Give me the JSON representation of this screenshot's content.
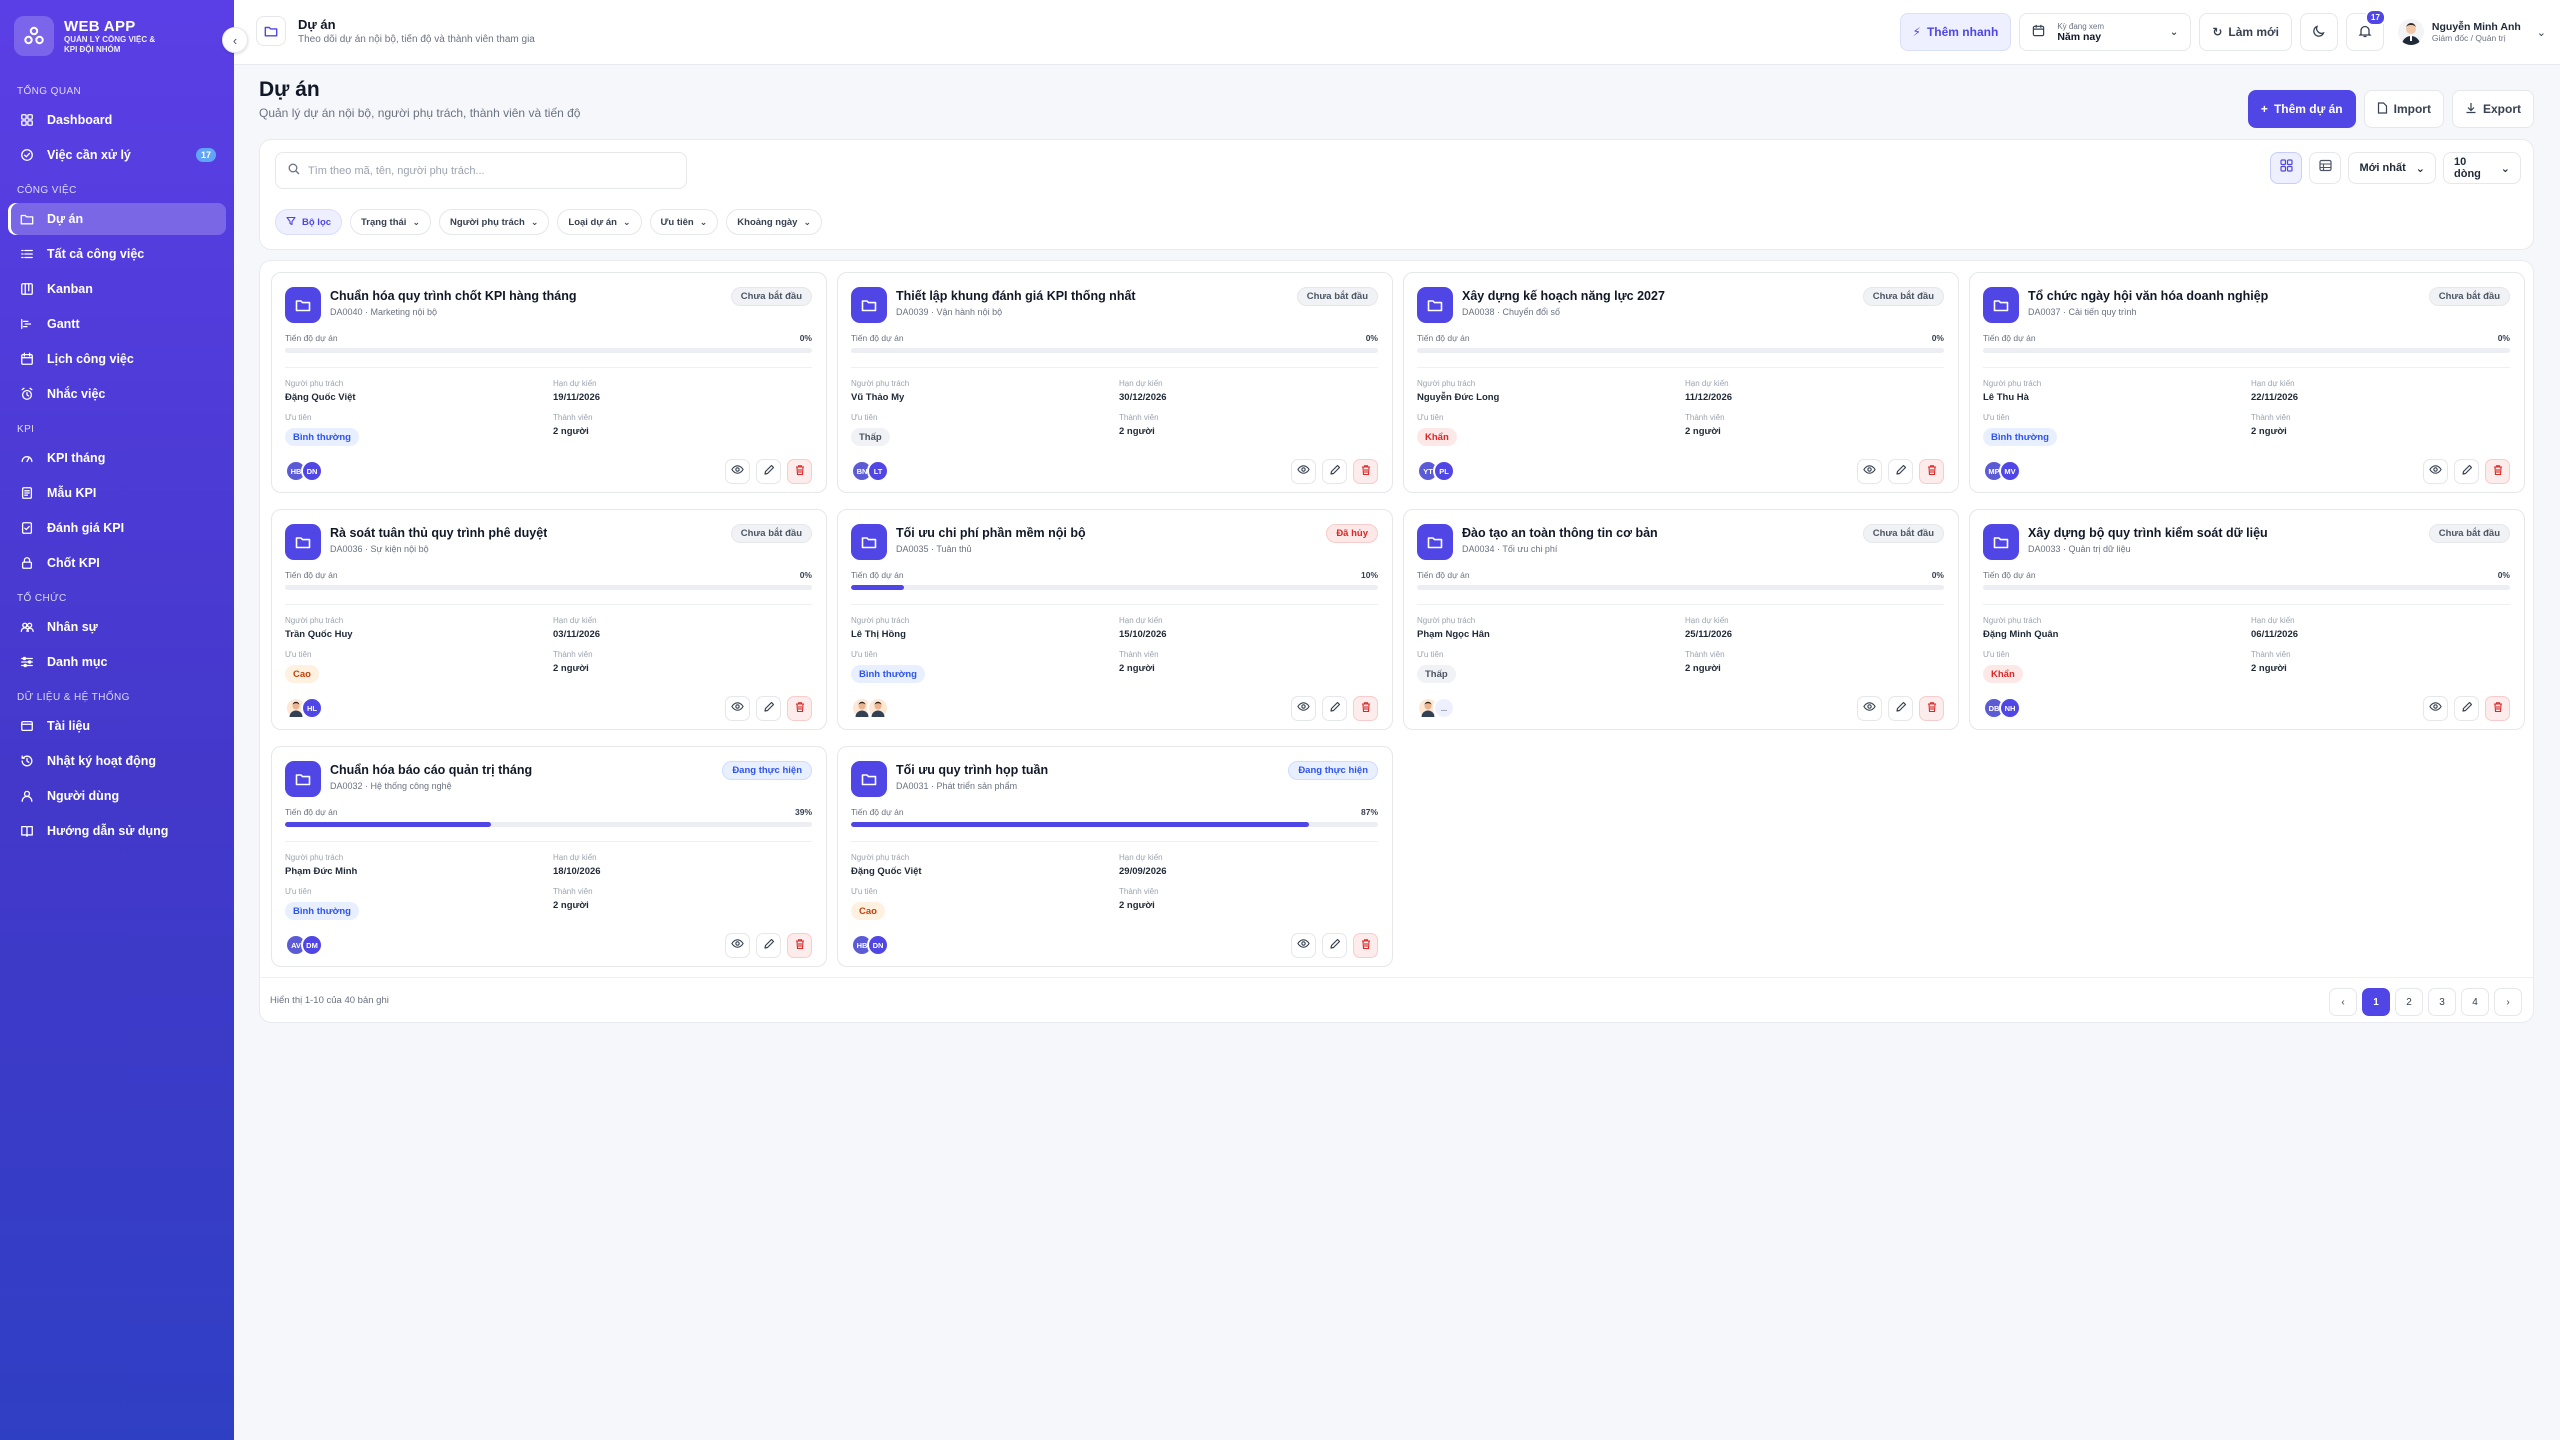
{
  "brand": {
    "title": "WEB APP",
    "subtitle": "QUẢN LÝ CÔNG VIỆC & KPI ĐỘI NHÓM"
  },
  "sidebar": {
    "sections": [
      {
        "title": "TỔNG QUAN",
        "items": [
          {
            "label": "Dashboard",
            "icon": "dashboard-icon"
          },
          {
            "label": "Việc cần xử lý",
            "icon": "check-circle-icon",
            "badge": "17"
          }
        ]
      },
      {
        "title": "CÔNG VIỆC",
        "items": [
          {
            "label": "Dự án",
            "icon": "folder-icon",
            "active": true
          },
          {
            "label": "Tất cả công việc",
            "icon": "list-icon"
          },
          {
            "label": "Kanban",
            "icon": "kanban-icon"
          },
          {
            "label": "Gantt",
            "icon": "gantt-icon"
          },
          {
            "label": "Lịch công việc",
            "icon": "calendar-icon"
          },
          {
            "label": "Nhắc việc",
            "icon": "alarm-icon"
          }
        ]
      },
      {
        "title": "KPI",
        "items": [
          {
            "label": "KPI tháng",
            "icon": "gauge-icon"
          },
          {
            "label": "Mẫu KPI",
            "icon": "template-icon"
          },
          {
            "label": "Đánh giá KPI",
            "icon": "review-icon"
          },
          {
            "label": "Chốt KPI",
            "icon": "lock-icon"
          }
        ]
      },
      {
        "title": "TỔ CHỨC",
        "items": [
          {
            "label": "Nhân sự",
            "icon": "users-icon"
          },
          {
            "label": "Danh mục",
            "icon": "category-icon"
          }
        ]
      },
      {
        "title": "DỮ LIỆU & HỆ THỐNG",
        "items": [
          {
            "label": "Tài liệu",
            "icon": "document-icon"
          },
          {
            "label": "Nhật ký hoạt động",
            "icon": "history-icon"
          },
          {
            "label": "Người dùng",
            "icon": "user-icon"
          },
          {
            "label": "Hướng dẫn sử dụng",
            "icon": "book-icon"
          }
        ]
      }
    ]
  },
  "topbar": {
    "title": "Dự án",
    "subtitle": "Theo dõi dự án nội bộ, tiến độ và thành viên tham gia",
    "quick_add": "Thêm nhanh",
    "period_label": "Kỳ đang xem",
    "period_value": "Năm nay",
    "refresh": "Làm mới",
    "notif_count": "17",
    "user_name": "Nguyễn Minh Anh",
    "user_role": "Giám đốc / Quản trị"
  },
  "page": {
    "title": "Dự án",
    "subtitle": "Quản lý dự án nội bộ, người phụ trách, thành viên và tiến độ",
    "add_button": "Thêm dự án",
    "import_button": "Import",
    "export_button": "Export"
  },
  "filters": {
    "search_placeholder": "Tìm theo mã, tên, người phụ trách...",
    "sort": "Mới nhất",
    "page_size": "10 dòng",
    "chips": [
      "Bộ lọc",
      "Trạng thái",
      "Người phụ trách",
      "Loại dự án",
      "Ưu tiên",
      "Khoảng ngày"
    ]
  },
  "labels": {
    "progress": "Tiến độ dự án",
    "owner": "Người phụ trách",
    "deadline": "Hạn dự kiến",
    "priority": "Ưu tiên",
    "members": "Thành viên"
  },
  "projects": [
    {
      "title": "Chuẩn hóa quy trình chốt KPI hàng tháng",
      "code": "DA0040 · Marketing nội bộ",
      "status": "Chưa bắt đầu",
      "status_type": "gray",
      "progress": 0,
      "progress_text": "0%",
      "owner": "Đặng Quốc Việt",
      "deadline": "19/11/2026",
      "priority": "Bình thường",
      "priority_type": "blue",
      "members": "2 người",
      "avatars": [
        {
          "text": "HB",
          "color": "#5b5bd6"
        },
        {
          "text": "DN",
          "color": "#4f46e5"
        }
      ]
    },
    {
      "title": "Thiết lập khung đánh giá KPI thống nhất",
      "code": "DA0039 · Vận hành nội bộ",
      "status": "Chưa bắt đầu",
      "status_type": "gray",
      "progress": 0,
      "progress_text": "0%",
      "owner": "Vũ Thảo My",
      "deadline": "30/12/2026",
      "priority": "Thấp",
      "priority_type": "gray",
      "members": "2 người",
      "avatars": [
        {
          "text": "BN",
          "color": "#5b5bd6"
        },
        {
          "text": "LT",
          "color": "#4f46e5"
        }
      ]
    },
    {
      "title": "Xây dựng kế hoạch năng lực 2027",
      "code": "DA0038 · Chuyển đổi số",
      "status": "Chưa bắt đầu",
      "status_type": "gray",
      "progress": 0,
      "progress_text": "0%",
      "owner": "Nguyễn Đức Long",
      "deadline": "11/12/2026",
      "priority": "Khẩn",
      "priority_type": "red",
      "members": "2 người",
      "avatars": [
        {
          "text": "YT",
          "color": "#5b5bd6"
        },
        {
          "text": "PL",
          "color": "#4f46e5"
        }
      ]
    },
    {
      "title": "Tổ chức ngày hội văn hóa doanh nghiệp",
      "code": "DA0037 · Cải tiến quy trình",
      "status": "Chưa bắt đầu",
      "status_type": "gray",
      "progress": 0,
      "progress_text": "0%",
      "owner": "Lê Thu Hà",
      "deadline": "22/11/2026",
      "priority": "Bình thường",
      "priority_type": "blue",
      "members": "2 người",
      "avatars": [
        {
          "text": "MP",
          "color": "#5b5bd6"
        },
        {
          "text": "MV",
          "color": "#4f46e5"
        }
      ]
    },
    {
      "title": "Rà soát tuân thủ quy trình phê duyệt",
      "code": "DA0036 · Sự kiện nội bộ",
      "status": "Chưa bắt đầu",
      "status_type": "gray",
      "progress": 0,
      "progress_text": "0%",
      "owner": "Trần Quốc Huy",
      "deadline": "03/11/2026",
      "priority": "Cao",
      "priority_type": "orange",
      "members": "2 người",
      "avatars": [
        {
          "text": "",
          "photo": true
        },
        {
          "text": "HL",
          "color": "#4f46e5"
        }
      ]
    },
    {
      "title": "Tối ưu chi phí phần mềm nội bộ",
      "code": "DA0035 · Tuân thủ",
      "status": "Đã hủy",
      "status_type": "red",
      "progress": 10,
      "progress_text": "10%",
      "owner": "Lê Thị Hồng",
      "deadline": "15/10/2026",
      "priority": "Bình thường",
      "priority_type": "blue",
      "members": "2 người",
      "avatars": [
        {
          "text": "",
          "photo": true
        },
        {
          "text": "",
          "photo": true
        }
      ]
    },
    {
      "title": "Đào tạo an toàn thông tin cơ bản",
      "code": "DA0034 · Tối ưu chi phí",
      "status": "Chưa bắt đầu",
      "status_type": "gray",
      "progress": 0,
      "progress_text": "0%",
      "owner": "Phạm Ngọc Hân",
      "deadline": "25/11/2026",
      "priority": "Thấp",
      "priority_type": "gray",
      "members": "2 người",
      "avatars": [
        {
          "text": "",
          "photo": true
        },
        {
          "text": "...",
          "more": true
        }
      ]
    },
    {
      "title": "Xây dựng bộ quy trình kiểm soát dữ liệu",
      "code": "DA0033 · Quản trị dữ liệu",
      "status": "Chưa bắt đầu",
      "status_type": "gray",
      "progress": 0,
      "progress_text": "0%",
      "owner": "Đặng Minh Quân",
      "deadline": "06/11/2026",
      "priority": "Khẩn",
      "priority_type": "red",
      "members": "2 người",
      "avatars": [
        {
          "text": "DB",
          "color": "#5b5bd6"
        },
        {
          "text": "NH",
          "color": "#4f46e5"
        }
      ]
    },
    {
      "title": "Chuẩn hóa báo cáo quản trị tháng",
      "code": "DA0032 · Hệ thống công nghệ",
      "status": "Đang thực hiện",
      "status_type": "blue",
      "progress": 39,
      "progress_text": "39%",
      "owner": "Phạm Đức Minh",
      "deadline": "18/10/2026",
      "priority": "Bình thường",
      "priority_type": "blue",
      "members": "2 người",
      "avatars": [
        {
          "text": "AV",
          "color": "#5b5bd6"
        },
        {
          "text": "DM",
          "color": "#4f46e5"
        }
      ]
    },
    {
      "title": "Tối ưu quy trình họp tuần",
      "code": "DA0031 · Phát triển sản phẩm",
      "status": "Đang thực hiện",
      "status_type": "blue",
      "progress": 87,
      "progress_text": "87%",
      "owner": "Đặng Quốc Việt",
      "deadline": "29/09/2026",
      "priority": "Cao",
      "priority_type": "orange",
      "members": "2 người",
      "avatars": [
        {
          "text": "HB",
          "color": "#5b5bd6"
        },
        {
          "text": "DN",
          "color": "#4f46e5"
        }
      ]
    }
  ],
  "pagination": {
    "info": "Hiển thị 1-10 của 40 bản ghi",
    "pages": [
      "1",
      "2",
      "3",
      "4"
    ],
    "current": "1"
  }
}
